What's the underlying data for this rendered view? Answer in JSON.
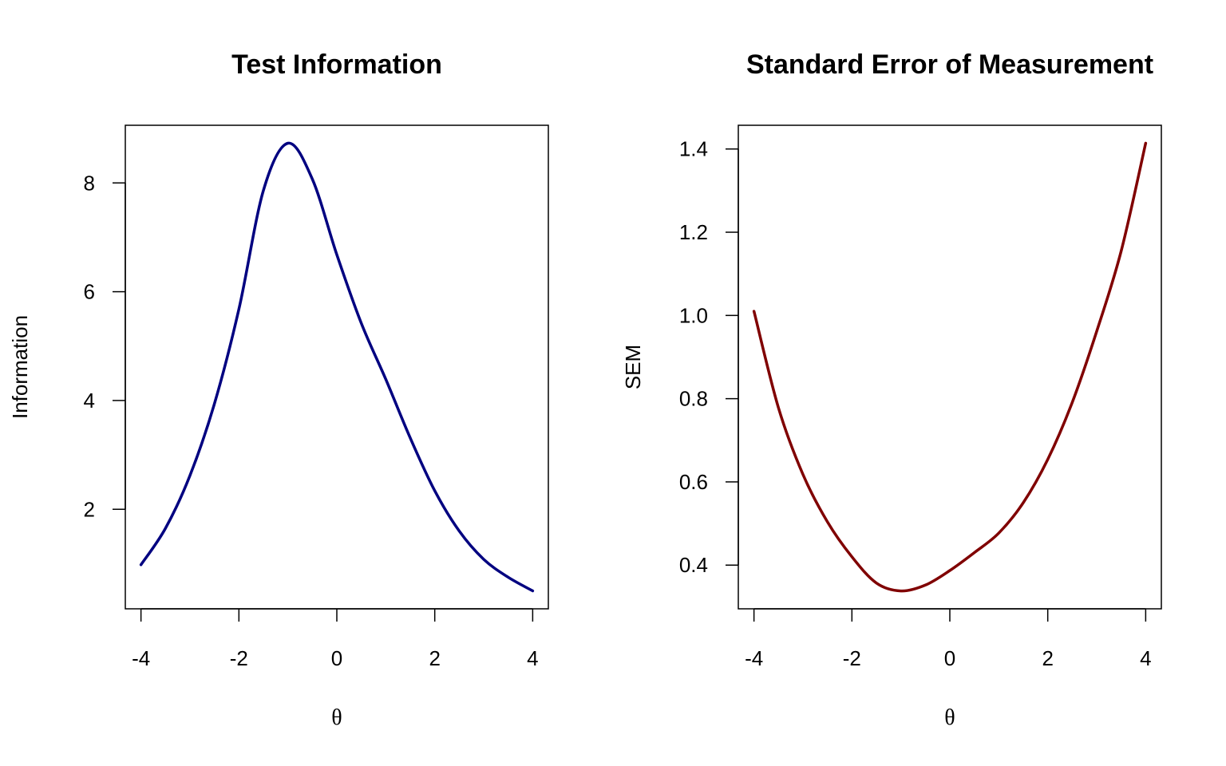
{
  "chart_data": [
    {
      "type": "line",
      "title": "Test Information",
      "xlabel": "θ",
      "ylabel": "Information",
      "xlim": [
        -4,
        4
      ],
      "ylim": [
        0.17,
        9.06
      ],
      "xticks": [
        -4,
        -2,
        0,
        2,
        4
      ],
      "yticks": [
        2,
        4,
        6,
        8
      ],
      "grid": false,
      "series": [
        {
          "name": "Information",
          "color": "#000080",
          "x": [
            -4,
            -3.5,
            -3,
            -2.5,
            -2,
            -1.5,
            -1,
            -0.5,
            0,
            0.5,
            1,
            1.5,
            2,
            2.5,
            3,
            3.5,
            4
          ],
          "y": [
            0.98,
            1.65,
            2.62,
            3.94,
            5.68,
            7.86,
            8.73,
            8.07,
            6.68,
            5.42,
            4.39,
            3.31,
            2.34,
            1.6,
            1.08,
            0.75,
            0.5
          ]
        }
      ]
    },
    {
      "type": "line",
      "title": "Standard Error of Measurement",
      "xlabel": "θ",
      "ylabel": "SEM",
      "xlim": [
        -4,
        4
      ],
      "ylim": [
        0.295,
        1.457
      ],
      "xticks": [
        -4,
        -2,
        0,
        2,
        4
      ],
      "yticks": [
        0.4,
        0.6,
        0.8,
        1.0,
        1.2,
        1.4
      ],
      "ytick_labels": [
        "0.4",
        "0.6",
        "0.8",
        "1.0",
        "1.2",
        "1.4"
      ],
      "grid": false,
      "series": [
        {
          "name": "SEM",
          "color": "#800000",
          "x": [
            -4,
            -3.5,
            -3,
            -2.5,
            -2,
            -1.5,
            -1,
            -0.5,
            0,
            0.5,
            1,
            1.5,
            2,
            2.5,
            3,
            3.5,
            4
          ],
          "y": [
            1.01,
            0.778,
            0.618,
            0.504,
            0.42,
            0.357,
            0.338,
            0.352,
            0.387,
            0.43,
            0.477,
            0.55,
            0.654,
            0.791,
            0.962,
            1.155,
            1.414
          ]
        }
      ]
    }
  ]
}
